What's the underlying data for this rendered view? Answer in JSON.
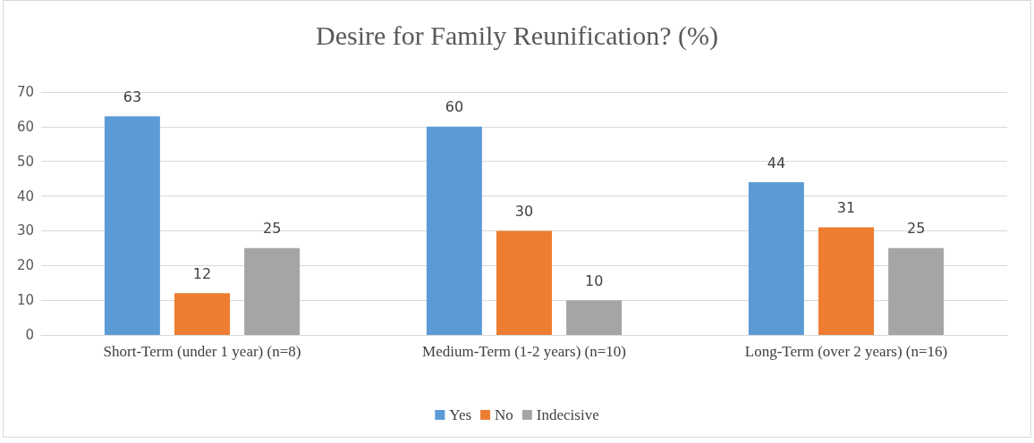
{
  "chart_data": {
    "type": "bar",
    "title": "Desire for Family Reunification? (%)",
    "categories": [
      "Short-Term (under 1 year) (n=8)",
      "Medium-Term (1-2 years) (n=10)",
      "Long-Term (over 2 years) (n=16)"
    ],
    "series": [
      {
        "name": "Yes",
        "color": "#5b9bd5",
        "values": [
          63,
          60,
          44
        ]
      },
      {
        "name": "No",
        "color": "#ed7d31",
        "values": [
          12,
          30,
          31
        ]
      },
      {
        "name": "Indecisive",
        "color": "#a5a5a5",
        "values": [
          25,
          10,
          25
        ]
      }
    ],
    "ylim": [
      0,
      70
    ],
    "yticks": [
      0,
      10,
      20,
      30,
      40,
      50,
      60,
      70
    ],
    "grid": "y",
    "legend": "bottom",
    "data_labels": true
  }
}
